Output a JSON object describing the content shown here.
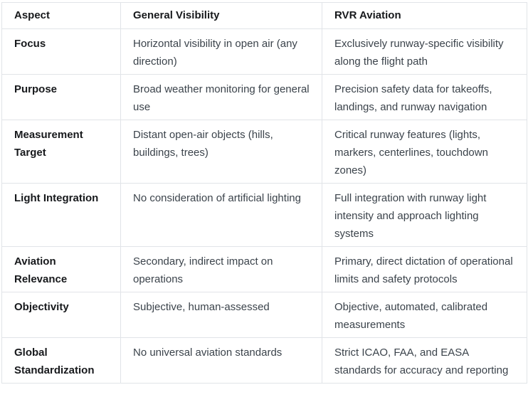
{
  "colors": {
    "border": "#e1e4e8",
    "header_text": "#17191c",
    "body_text": "#3b434b",
    "background": "#ffffff"
  },
  "table": {
    "columns": [
      {
        "key": "aspect",
        "label": "Aspect"
      },
      {
        "key": "general",
        "label": "General Visibility"
      },
      {
        "key": "rvr",
        "label": "RVR Aviation"
      }
    ],
    "rows": [
      {
        "aspect": "Focus",
        "general": "Horizontal visibility in open air (any direction)",
        "rvr": "Exclusively runway-specific visibility along the flight path"
      },
      {
        "aspect": "Purpose",
        "general": "Broad weather monitoring for general use",
        "rvr": "Precision safety data for takeoffs, landings, and runway navigation"
      },
      {
        "aspect": "Measurement Target",
        "general": "Distant open-air objects (hills, buildings, trees)",
        "rvr": "Critical runway features (lights, markers, centerlines, touchdown zones)"
      },
      {
        "aspect": "Light Integration",
        "general": "No consideration of artificial lighting",
        "rvr": "Full integration with runway light intensity and approach lighting systems"
      },
      {
        "aspect": "Aviation Relevance",
        "general": "Secondary, indirect impact on operations",
        "rvr": "Primary, direct dictation of operational limits and safety protocols"
      },
      {
        "aspect": "Objectivity",
        "general": "Subjective, human-assessed",
        "rvr": "Objective, automated, calibrated measurements"
      },
      {
        "aspect": "Global Standardization",
        "general": "No universal aviation standards",
        "rvr": "Strict ICAO, FAA, and EASA standards for accuracy and reporting"
      }
    ]
  }
}
